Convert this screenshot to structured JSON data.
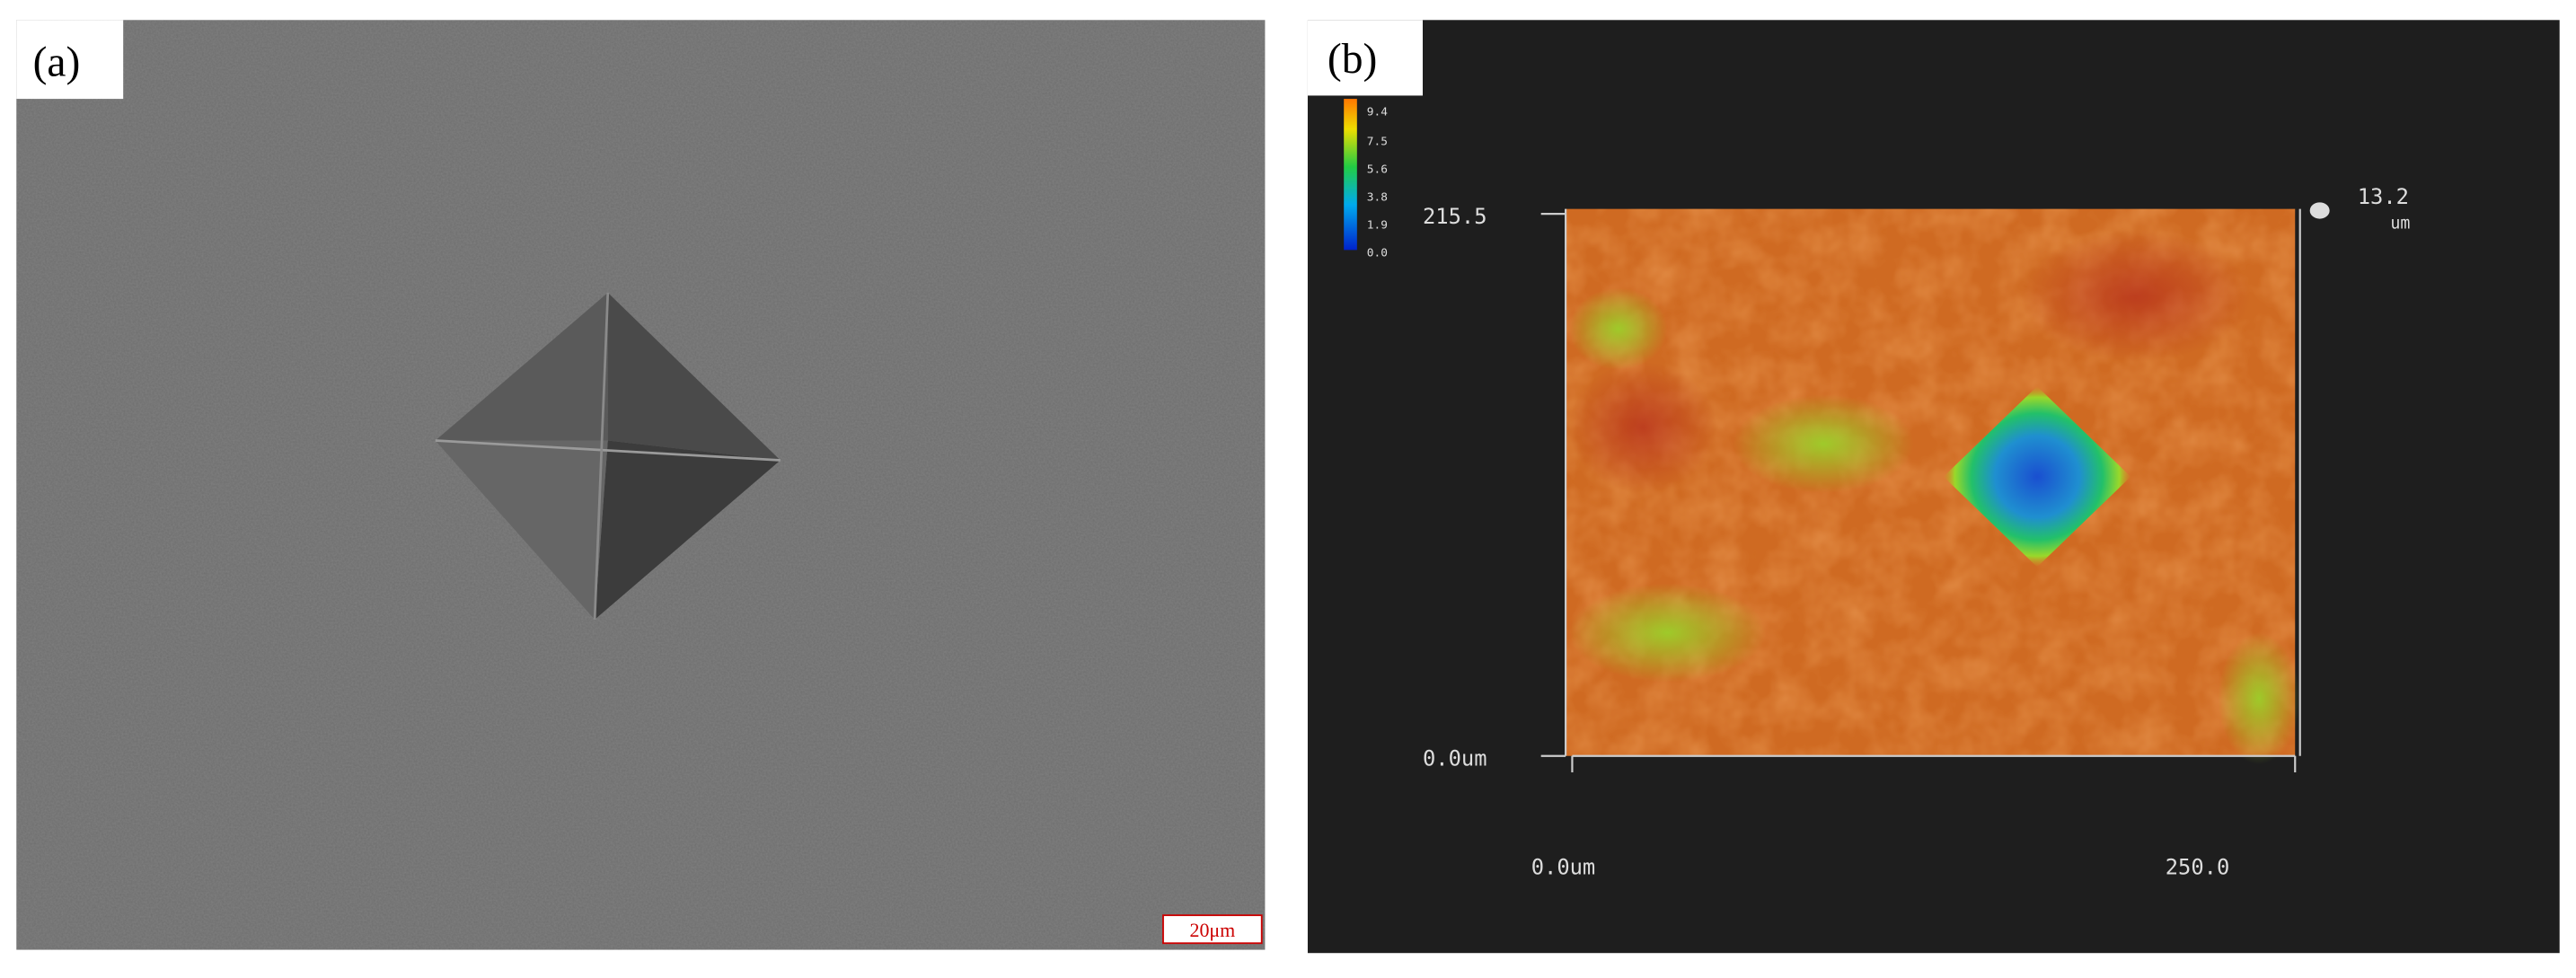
{
  "panels": [
    {
      "label": "(a)",
      "scale_bar": "20μm"
    },
    {
      "label": "(b)",
      "colorbar_ticks": [
        "9.4",
        "7.5",
        "5.6",
        "3.8",
        "1.9",
        "0.0"
      ],
      "y_axis": {
        "top": "215.5",
        "bottom": "0.0um"
      },
      "x_axis": {
        "left": "0.0um",
        "right": "250.0"
      },
      "z_max": "13.2",
      "z_unit": "um"
    }
  ]
}
